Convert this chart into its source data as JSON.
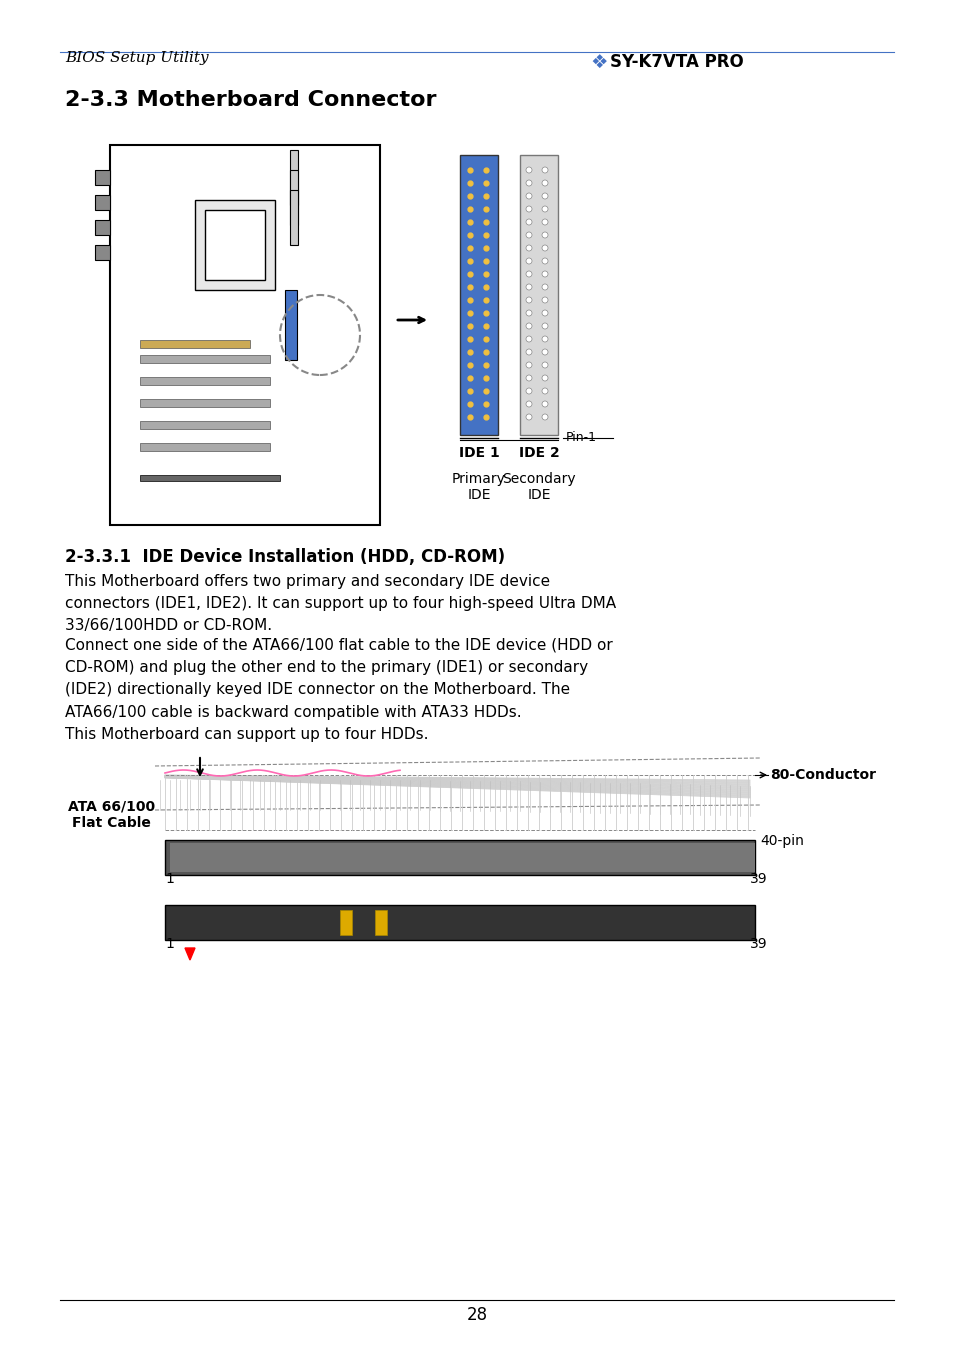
{
  "page_title_left": "BIOS Setup Utility",
  "page_title_right": "SY-K7VTA PRO",
  "section_title": "2-3.3 Motherboard Connector",
  "subsection_title": "2-3.3.1  IDE Device Installation (HDD, CD-ROM)",
  "body_text_1": "This Motherboard offers two primary and secondary IDE device\nconnectors (IDE1, IDE2). It can support up to four high-speed Ultra DMA\n33/66/100HDD or CD-ROM.",
  "body_text_2": "Connect one side of the ATA66/100 flat cable to the IDE device (HDD or\nCD-ROM) and plug the other end to the primary (IDE1) or secondary\n(IDE2) directionally keyed IDE connector on the Motherboard. The\nATA66/100 cable is backward compatible with ATA33 HDDs.\nThis Motherboard can support up to four HDDs.",
  "ide1_label": "IDE 1",
  "ide2_label": "IDE 2",
  "ide1_sublabel": "Primary\nIDE",
  "ide2_sublabel": "Secondary\nIDE",
  "pin1_label": "Pin-1",
  "cable_label": "ATA 66/100\nFlat Cable",
  "conductor_label": "80-Conductor",
  "pin_label": "40-pin",
  "pin_num_1": "1",
  "pin_num_39_top": "39",
  "pin_num_1b": "1",
  "pin_num_39b": "39",
  "page_number": "28",
  "bg_color": "#ffffff",
  "text_color": "#000000",
  "ide1_color": "#4472c4",
  "ide2_color": "#d0d0d0",
  "header_line_color": "#4472c4",
  "soyo_color": "#4472c4"
}
